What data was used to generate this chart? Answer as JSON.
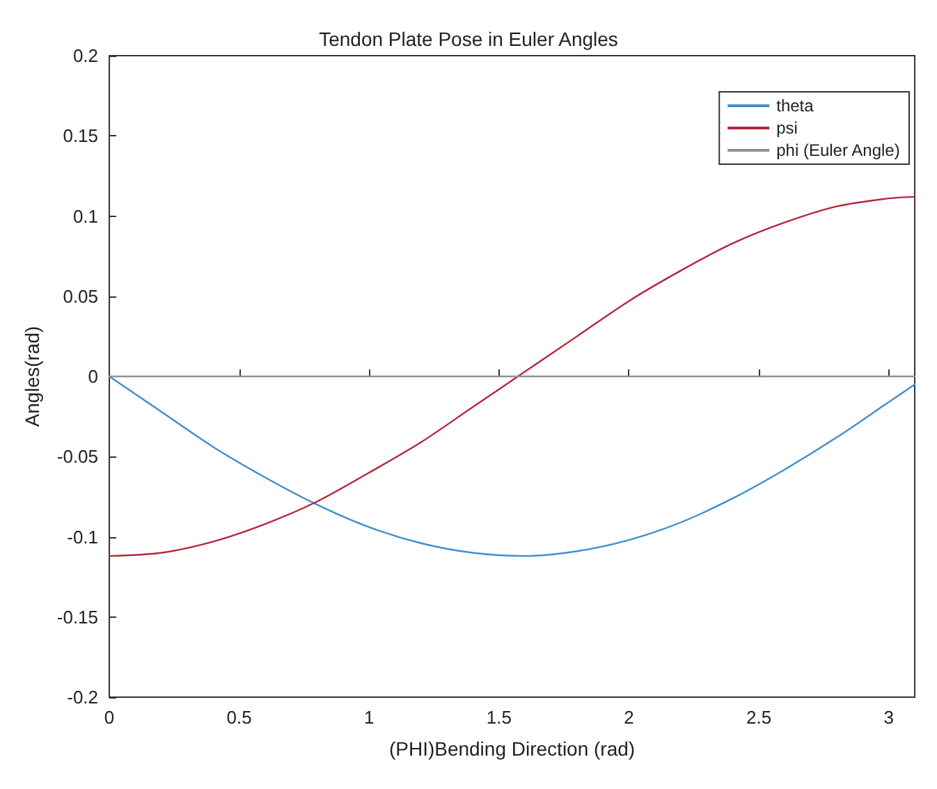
{
  "chart_data": {
    "type": "line",
    "title": "Tendon Plate Pose in Euler Angles",
    "xlabel": "(PHI)Bending Direction (rad)",
    "ylabel": "Angles(rad)",
    "x": [
      0,
      0.2,
      0.4,
      0.6,
      0.8,
      1.0,
      1.2,
      1.4,
      1.6,
      1.8,
      2.0,
      2.2,
      2.4,
      2.6,
      2.8,
      3.0,
      3.1
    ],
    "series": [
      {
        "name": "theta",
        "color": "#3d8fd0",
        "values": [
          0,
          -0.022,
          -0.044,
          -0.063,
          -0.08,
          -0.094,
          -0.104,
          -0.11,
          -0.112,
          -0.109,
          -0.102,
          -0.091,
          -0.076,
          -0.058,
          -0.038,
          -0.016,
          -0.005
        ]
      },
      {
        "name": "psi",
        "color": "#b5263d",
        "values": [
          -0.112,
          -0.11,
          -0.103,
          -0.092,
          -0.078,
          -0.06,
          -0.041,
          -0.019,
          0.003,
          0.025,
          0.047,
          0.066,
          0.083,
          0.096,
          0.106,
          0.111,
          0.112
        ]
      },
      {
        "name": "phi (Euler Angle)",
        "color": "#8f8f96",
        "values": [
          0,
          0,
          0,
          0,
          0,
          0,
          0,
          0,
          0,
          0,
          0,
          0,
          0,
          0,
          0,
          0,
          0
        ]
      }
    ],
    "xlim": [
      0,
      3.1
    ],
    "xticks": [
      0,
      0.5,
      1,
      1.5,
      2,
      2.5,
      3
    ],
    "ylim": [
      -0.2,
      0.2
    ],
    "yticks": [
      -0.2,
      -0.15,
      -0.1,
      -0.05,
      0,
      0.05,
      0.1,
      0.15,
      0.2
    ],
    "grid": false,
    "legend": "top right",
    "marker": "none",
    "line_style": "solid"
  }
}
